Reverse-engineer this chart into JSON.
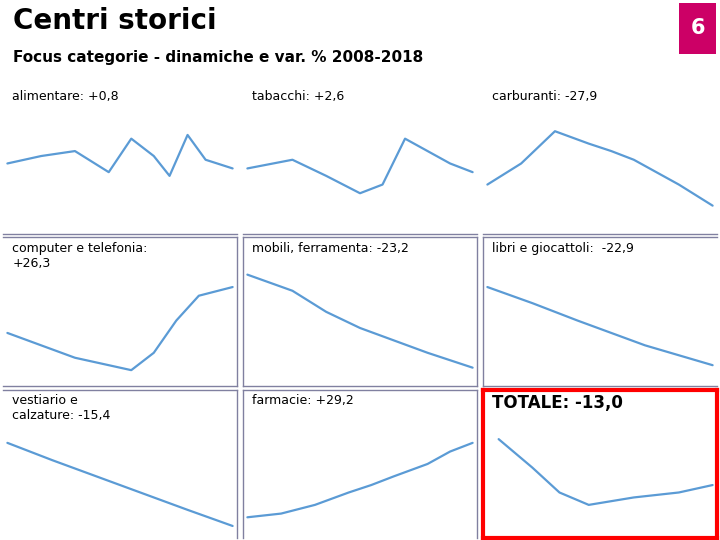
{
  "title": "Centri storici",
  "subtitle": "Focus categorie - dinamiche e var. % 2008-2018",
  "page_num": "6",
  "title_color": "#000000",
  "subtitle_color": "#000000",
  "page_num_bg": "#cc0066",
  "line_color": "#5b9bd5",
  "sep_color": "#8080a0",
  "panels": [
    {
      "label": "alimentare: +0,8",
      "fontsize": 9,
      "bold": false,
      "curve": [
        0.0,
        0.52,
        0.15,
        0.58,
        0.3,
        0.62,
        0.45,
        0.45,
        0.55,
        0.72,
        0.65,
        0.58,
        0.72,
        0.42,
        0.8,
        0.75,
        0.88,
        0.55,
        1.0,
        0.48
      ],
      "border": false,
      "row": 0,
      "col": 0
    },
    {
      "label": "tabacchi: +2,6",
      "fontsize": 9,
      "bold": false,
      "curve": [
        0.0,
        0.48,
        0.2,
        0.55,
        0.35,
        0.42,
        0.5,
        0.28,
        0.6,
        0.35,
        0.7,
        0.72,
        0.82,
        0.6,
        0.9,
        0.52,
        1.0,
        0.45
      ],
      "border": false,
      "row": 0,
      "col": 1
    },
    {
      "label": "carburanti: -27,9",
      "fontsize": 9,
      "bold": false,
      "curve": [
        0.0,
        0.35,
        0.15,
        0.52,
        0.3,
        0.78,
        0.45,
        0.68,
        0.55,
        0.62,
        0.65,
        0.55,
        0.75,
        0.45,
        0.85,
        0.35,
        1.0,
        0.18
      ],
      "border": false,
      "row": 0,
      "col": 2
    },
    {
      "label": "computer e telefonia:\n+26,3",
      "fontsize": 9,
      "bold": false,
      "curve": [
        0.0,
        0.38,
        0.15,
        0.28,
        0.3,
        0.18,
        0.45,
        0.12,
        0.55,
        0.08,
        0.65,
        0.22,
        0.75,
        0.48,
        0.85,
        0.68,
        1.0,
        0.75
      ],
      "border": false,
      "row": 1,
      "col": 0
    },
    {
      "label": "mobili, ferramenta: -23,2",
      "fontsize": 9,
      "bold": false,
      "curve": [
        0.0,
        0.85,
        0.2,
        0.72,
        0.35,
        0.55,
        0.5,
        0.42,
        0.65,
        0.32,
        0.8,
        0.22,
        1.0,
        0.1
      ],
      "border": false,
      "row": 1,
      "col": 1
    },
    {
      "label": "libri e giocattoli:  -22,9",
      "fontsize": 9,
      "bold": false,
      "curve": [
        0.0,
        0.75,
        0.2,
        0.62,
        0.4,
        0.48,
        0.55,
        0.38,
        0.7,
        0.28,
        0.85,
        0.2,
        1.0,
        0.12
      ],
      "border": false,
      "row": 1,
      "col": 2
    },
    {
      "label": "vestiario e\ncalzature: -15,4",
      "fontsize": 9,
      "bold": false,
      "curve": [
        0.0,
        0.72,
        0.1,
        0.65,
        0.2,
        0.58,
        0.35,
        0.48,
        0.5,
        0.38,
        0.65,
        0.28,
        0.8,
        0.18,
        1.0,
        0.05
      ],
      "border": false,
      "row": 2,
      "col": 0
    },
    {
      "label": "farmacie: +29,2",
      "fontsize": 9,
      "bold": false,
      "curve": [
        0.0,
        0.12,
        0.15,
        0.15,
        0.3,
        0.22,
        0.45,
        0.32,
        0.55,
        0.38,
        0.65,
        0.45,
        0.8,
        0.55,
        0.9,
        0.65,
        1.0,
        0.72
      ],
      "border": false,
      "row": 2,
      "col": 1
    },
    {
      "label": "TOTALE: -13,0",
      "fontsize": 12,
      "bold": true,
      "curve": [
        0.05,
        0.75,
        0.2,
        0.52,
        0.32,
        0.32,
        0.45,
        0.22,
        0.55,
        0.25,
        0.65,
        0.28,
        0.75,
        0.3,
        0.85,
        0.32,
        1.0,
        0.38
      ],
      "border": true,
      "row": 2,
      "col": 2
    }
  ]
}
